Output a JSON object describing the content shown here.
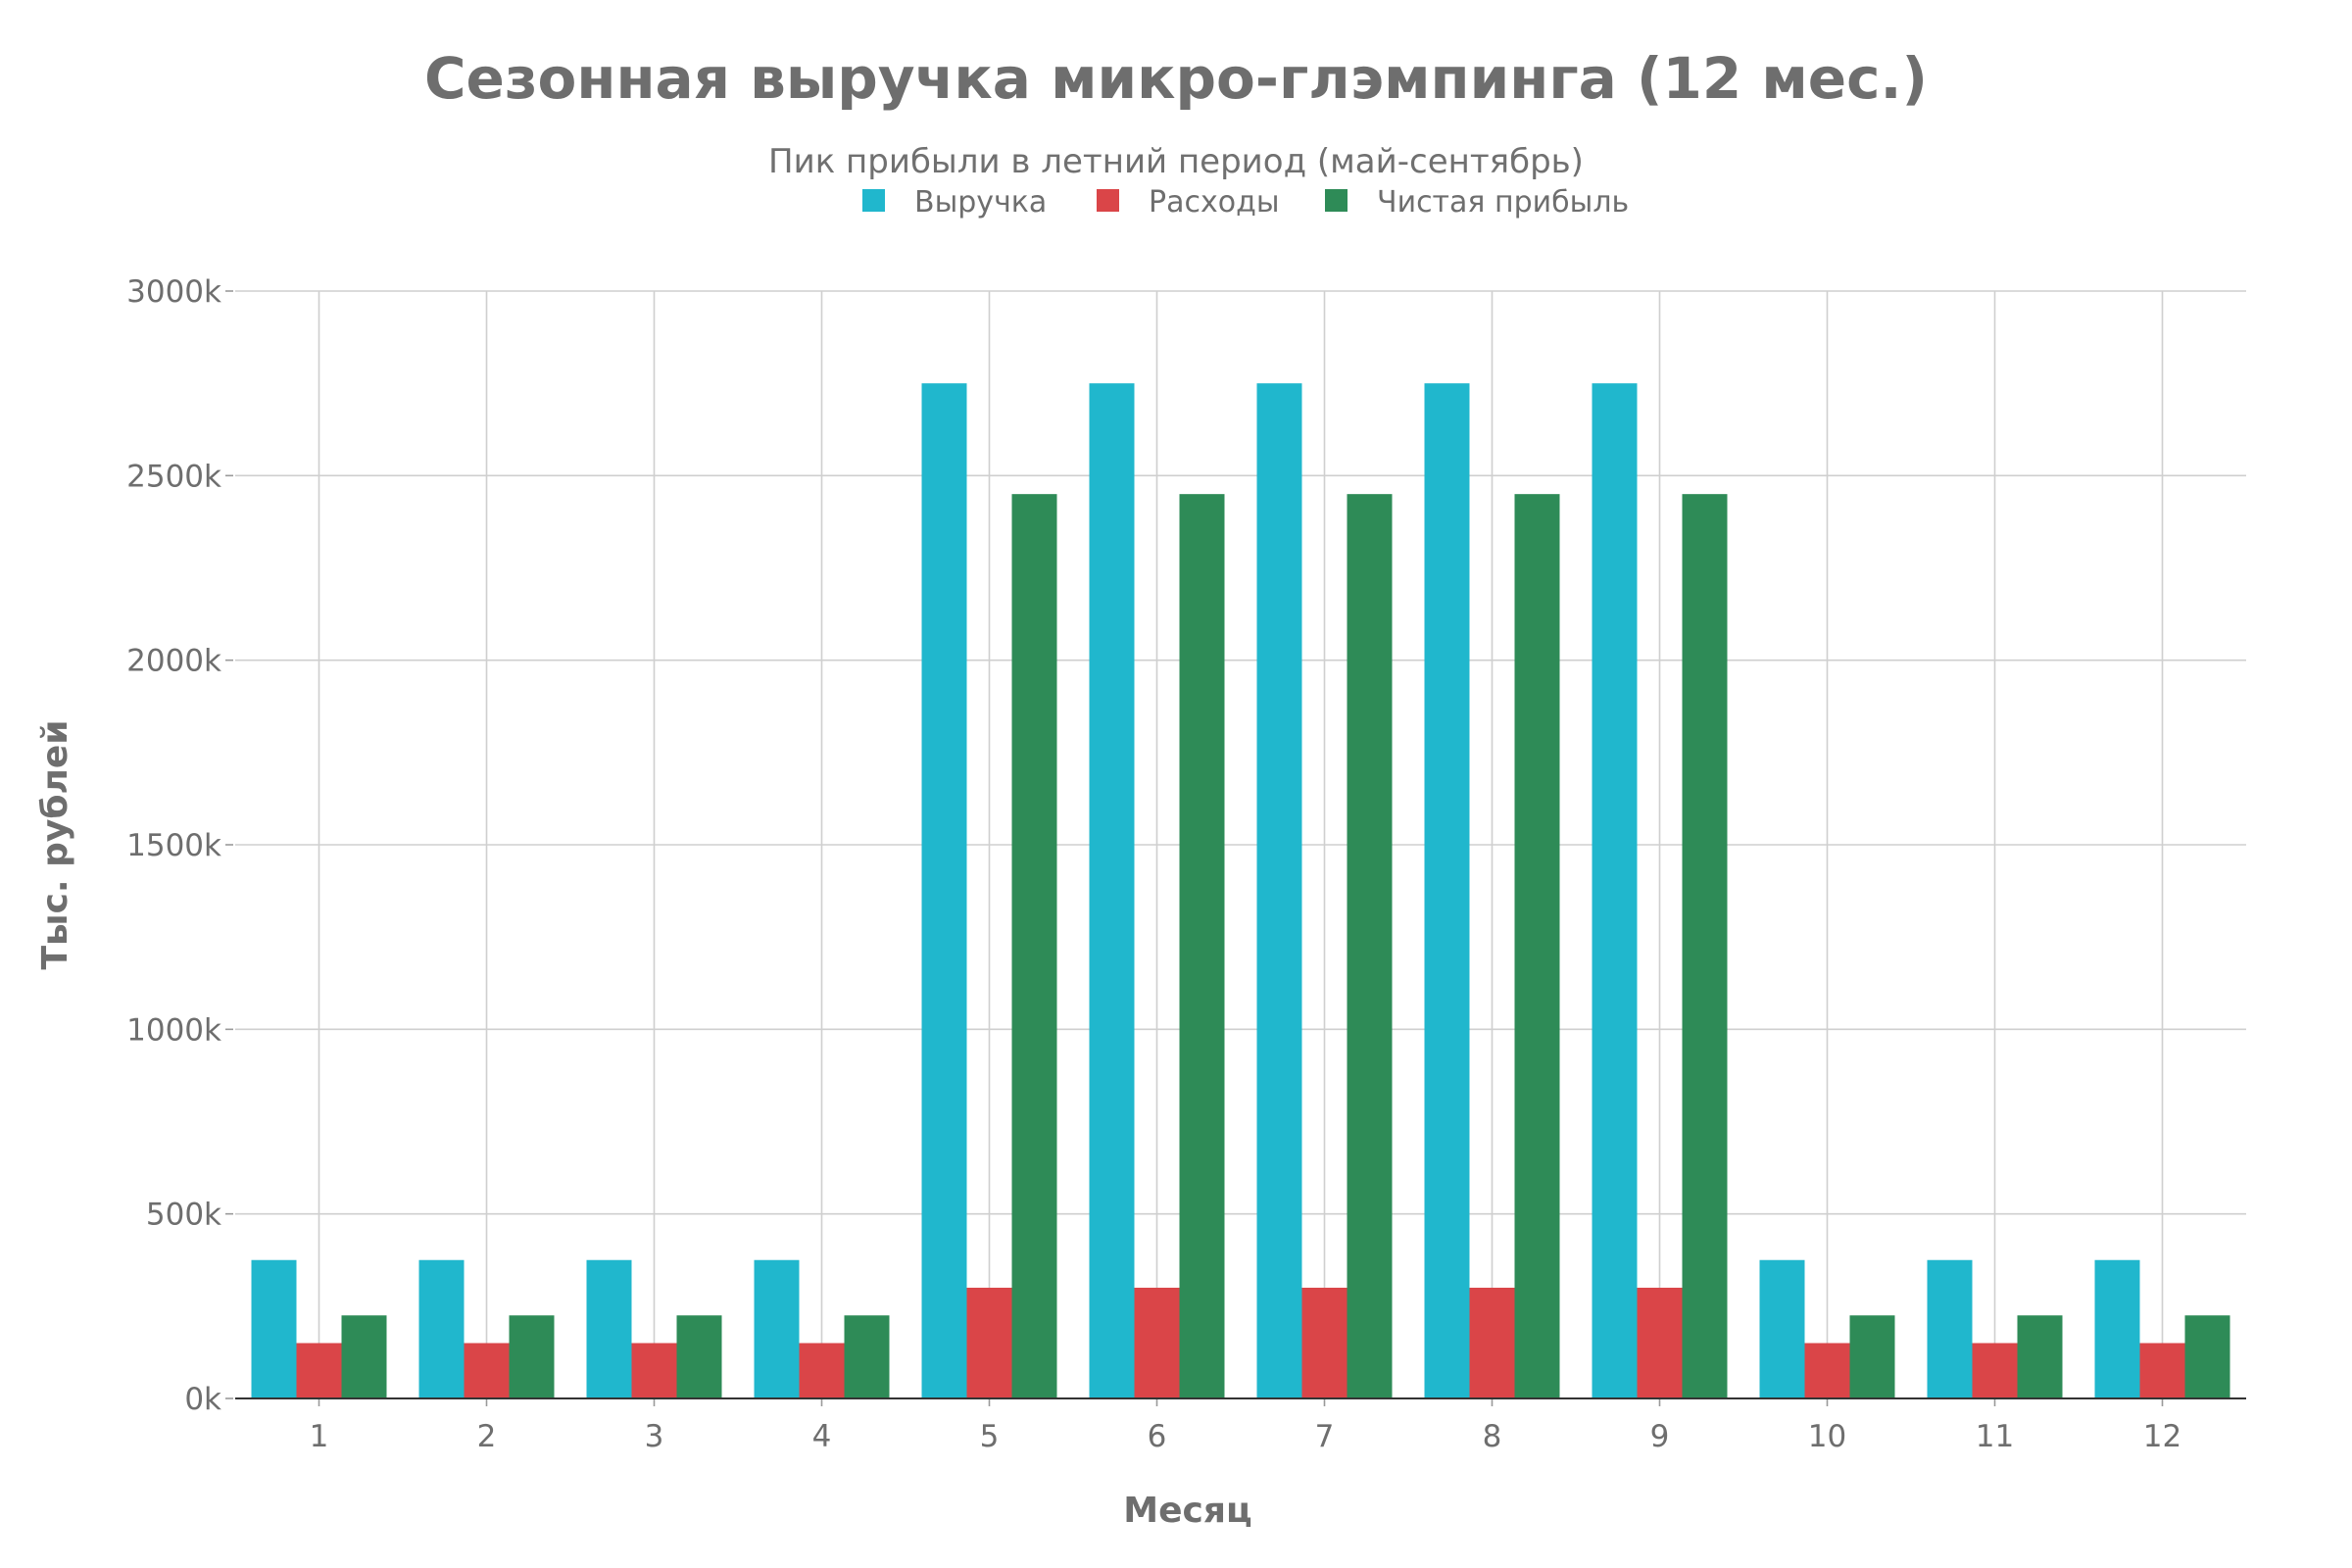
{
  "chart_data": {
    "type": "bar",
    "title": "Сезонная выручка микро-глэмпинга (12 мес.)",
    "subtitle": "Пик прибыли в летний период (май-сентябрь)",
    "xlabel": "Месяц",
    "ylabel": "Тыс. рублей",
    "categories": [
      "1",
      "2",
      "3",
      "4",
      "5",
      "6",
      "7",
      "8",
      "9",
      "10",
      "11",
      "12"
    ],
    "y_ticks": [
      "0k",
      "500k",
      "1000k",
      "1500k",
      "2000k",
      "2500k",
      "3000k"
    ],
    "y_tick_values": [
      0,
      500,
      1000,
      1500,
      2000,
      2500,
      3000
    ],
    "ylim": [
      0,
      3000
    ],
    "grid": true,
    "legend_position": "top-center",
    "series": [
      {
        "name": "Выручка",
        "color": "#20b7cd",
        "values": [
          375,
          375,
          375,
          375,
          2750,
          2750,
          2750,
          2750,
          2750,
          375,
          375,
          375
        ]
      },
      {
        "name": "Расходы",
        "color": "#da4548",
        "values": [
          150,
          150,
          150,
          150,
          300,
          300,
          300,
          300,
          300,
          150,
          150,
          150
        ]
      },
      {
        "name": "Чистая прибыль",
        "color": "#2e8b57",
        "values": [
          225,
          225,
          225,
          225,
          2450,
          2450,
          2450,
          2450,
          2450,
          225,
          225,
          225
        ]
      }
    ]
  }
}
